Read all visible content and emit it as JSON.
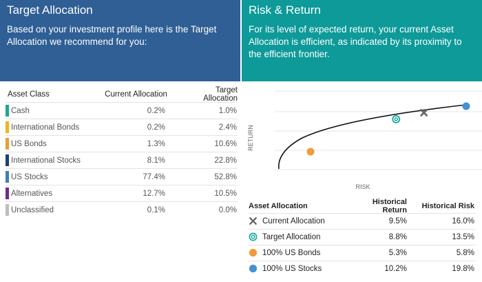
{
  "left": {
    "title": "Target Allocation",
    "description": "Based on your investment profile here is the Target Allocation we recommend for you:",
    "table": {
      "headers": [
        "Asset Class",
        "Current Allocation",
        "Target Allocation"
      ],
      "rows": [
        {
          "name": "Cash",
          "current": "0.2%",
          "target": "1.0%",
          "color": "#1ba98f"
        },
        {
          "name": "International Bonds",
          "current": "0.2%",
          "target": "2.4%",
          "color": "#f2b21f"
        },
        {
          "name": "US Bonds",
          "current": "1.3%",
          "target": "10.6%",
          "color": "#ef9c31"
        },
        {
          "name": "International Stocks",
          "current": "8.1%",
          "target": "22.8%",
          "color": "#1f3f6e"
        },
        {
          "name": "US Stocks",
          "current": "77.4%",
          "target": "52.8%",
          "color": "#3f7fb6"
        },
        {
          "name": "Alternatives",
          "current": "12.7%",
          "target": "10.5%",
          "color": "#6f2d8a"
        },
        {
          "name": "Unclassified",
          "current": "0.1%",
          "target": "0.0%",
          "color": "#bdbdbd"
        }
      ]
    }
  },
  "right": {
    "title": "Risk & Return",
    "description": "For its level of expected return, your current Asset Allocation is efficient, as indicated by its proximity to the efficient frontier.",
    "chart": {
      "ylabel": "RETURN",
      "xlabel": "RISK"
    },
    "table": {
      "headers": [
        "Asset Allocation",
        "Historical Return",
        "Historical Risk"
      ],
      "rows": [
        {
          "name": "Current Allocation",
          "return": "9.5%",
          "risk": "16.0%",
          "icon": "x-mark-icon"
        },
        {
          "name": "Target Allocation",
          "return": "8.8%",
          "risk": "13.5%",
          "icon": "target-ring-icon"
        },
        {
          "name": "100% US Bonds",
          "return": "5.3%",
          "risk": "5.8%",
          "icon": "orange-dot-icon"
        },
        {
          "name": "100% US Stocks",
          "return": "10.2%",
          "risk": "19.8%",
          "icon": "blue-dot-icon"
        }
      ]
    }
  },
  "chart_data": {
    "type": "scatter",
    "title": "",
    "xlabel": "RISK",
    "ylabel": "RETURN",
    "grid": true,
    "series": [
      {
        "name": "Current Allocation",
        "x": [
          16.0
        ],
        "y": [
          9.5
        ]
      },
      {
        "name": "Target Allocation",
        "x": [
          13.5
        ],
        "y": [
          8.8
        ]
      },
      {
        "name": "100% US Bonds",
        "x": [
          5.8
        ],
        "y": [
          5.3
        ]
      },
      {
        "name": "100% US Stocks",
        "x": [
          19.8
        ],
        "y": [
          10.2
        ]
      }
    ]
  },
  "colors": {
    "left_header": "#2f5f95",
    "right_header": "#0d9a99",
    "bonds_marker": "#f39a3b",
    "stocks_marker": "#4391d3",
    "target_marker": "#17a8a0",
    "current_marker": "#666666"
  }
}
